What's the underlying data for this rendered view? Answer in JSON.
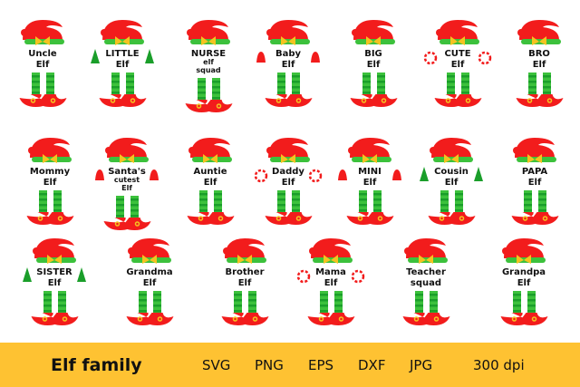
{
  "elves": [
    {
      "lines": [
        "Uncle",
        "Elf"
      ],
      "deco": "none"
    },
    {
      "lines": [
        "LITTLE",
        "Elf"
      ],
      "deco": "tree"
    },
    {
      "lines": [
        "NURSE",
        "elf",
        "squad"
      ],
      "deco": "none"
    },
    {
      "lines": [
        "Baby",
        "Elf"
      ],
      "deco": "bell"
    },
    {
      "lines": [
        "BIG",
        "Elf"
      ],
      "deco": "none"
    },
    {
      "lines": [
        "CUTE",
        "Elf"
      ],
      "deco": "candy"
    },
    {
      "lines": [
        "BRO",
        "Elf"
      ],
      "deco": "none"
    },
    {
      "lines": [
        "Mommy",
        "Elf"
      ],
      "deco": "none"
    },
    {
      "lines": [
        "Santa's",
        "cutest",
        "Elf"
      ],
      "deco": "bell"
    },
    {
      "lines": [
        "Auntie",
        "Elf"
      ],
      "deco": "none"
    },
    {
      "lines": [
        "Daddy",
        "Elf"
      ],
      "deco": "candy"
    },
    {
      "lines": [
        "MINI",
        "Elf"
      ],
      "deco": "bell"
    },
    {
      "lines": [
        "Cousin",
        "Elf"
      ],
      "deco": "tree"
    },
    {
      "lines": [
        "PAPA",
        "Elf"
      ],
      "deco": "none"
    },
    {
      "lines": [
        "SISTER",
        "Elf"
      ],
      "deco": "tree"
    },
    {
      "lines": [
        "Grandma",
        "Elf"
      ],
      "deco": "none"
    },
    {
      "lines": [
        "Brother",
        "Elf"
      ],
      "deco": "none"
    },
    {
      "lines": [
        "Mama",
        "Elf"
      ],
      "deco": "candy"
    },
    {
      "lines": [
        "Teacher",
        "squad"
      ],
      "deco": "none"
    },
    {
      "lines": [
        "Grandpa",
        "Elf"
      ],
      "deco": "none"
    }
  ],
  "footer": {
    "title": "Elf family",
    "formats": [
      "SVG",
      "PNG",
      "EPS",
      "DXF",
      "JPG"
    ],
    "resolution": "300 dpi"
  },
  "colors": {
    "hat": "#f21c1c",
    "brim": "#3cc13c",
    "stripe": "#1a9e2a",
    "bow": "#f5c320",
    "bar": "#fec232",
    "text": "#111111"
  }
}
